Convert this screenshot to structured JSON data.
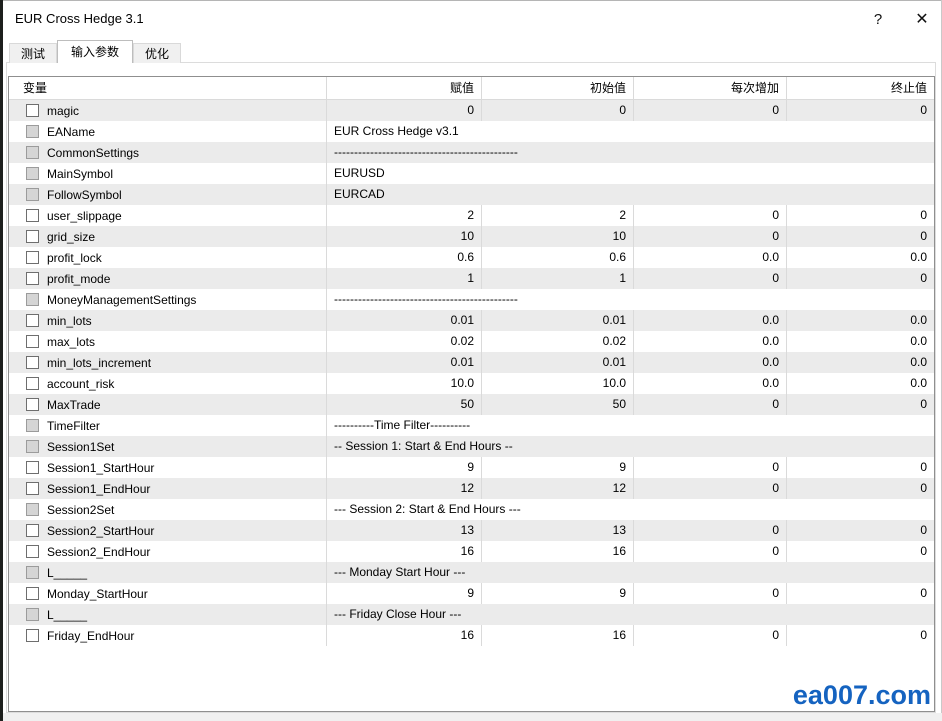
{
  "window": {
    "title": "EUR Cross Hedge 3.1",
    "help_label": "?",
    "close_label": "✕"
  },
  "tabs": [
    {
      "label": "测试",
      "active": false
    },
    {
      "label": "输入参数",
      "active": true
    },
    {
      "label": "优化",
      "active": false
    }
  ],
  "table": {
    "columns": [
      "变量",
      "赋值",
      "初始值",
      "每次增加",
      "终止值"
    ],
    "rows": [
      {
        "name": "magic",
        "type": "num",
        "enabled": true,
        "value": "0",
        "start": "0",
        "step": "0",
        "stop": "0"
      },
      {
        "name": "EAName",
        "type": "str",
        "enabled": false,
        "value": "EUR Cross Hedge v3.1"
      },
      {
        "name": "CommonSettings",
        "type": "str",
        "enabled": false,
        "value": "----------------------------------------------"
      },
      {
        "name": "MainSymbol",
        "type": "str",
        "enabled": false,
        "value": "EURUSD"
      },
      {
        "name": "FollowSymbol",
        "type": "str",
        "enabled": false,
        "value": "EURCAD"
      },
      {
        "name": "user_slippage",
        "type": "num",
        "enabled": true,
        "value": "2",
        "start": "2",
        "step": "0",
        "stop": "0"
      },
      {
        "name": "grid_size",
        "type": "num",
        "enabled": true,
        "value": "10",
        "start": "10",
        "step": "0",
        "stop": "0"
      },
      {
        "name": "profit_lock",
        "type": "num",
        "enabled": true,
        "value": "0.6",
        "start": "0.6",
        "step": "0.0",
        "stop": "0.0"
      },
      {
        "name": "profit_mode",
        "type": "num",
        "enabled": true,
        "value": "1",
        "start": "1",
        "step": "0",
        "stop": "0"
      },
      {
        "name": "MoneyManagementSettings",
        "type": "str",
        "enabled": false,
        "value": "----------------------------------------------"
      },
      {
        "name": "min_lots",
        "type": "num",
        "enabled": true,
        "value": "0.01",
        "start": "0.01",
        "step": "0.0",
        "stop": "0.0"
      },
      {
        "name": "max_lots",
        "type": "num",
        "enabled": true,
        "value": "0.02",
        "start": "0.02",
        "step": "0.0",
        "stop": "0.0"
      },
      {
        "name": "min_lots_increment",
        "type": "num",
        "enabled": true,
        "value": "0.01",
        "start": "0.01",
        "step": "0.0",
        "stop": "0.0"
      },
      {
        "name": "account_risk",
        "type": "num",
        "enabled": true,
        "value": "10.0",
        "start": "10.0",
        "step": "0.0",
        "stop": "0.0"
      },
      {
        "name": "MaxTrade",
        "type": "num",
        "enabled": true,
        "value": "50",
        "start": "50",
        "step": "0",
        "stop": "0"
      },
      {
        "name": "TimeFilter",
        "type": "str",
        "enabled": false,
        "value": "----------Time Filter----------"
      },
      {
        "name": "Session1Set",
        "type": "str",
        "enabled": false,
        "value": "-- Session 1: Start & End Hours --"
      },
      {
        "name": "Session1_StartHour",
        "type": "num",
        "enabled": true,
        "value": "9",
        "start": "9",
        "step": "0",
        "stop": "0"
      },
      {
        "name": "Session1_EndHour",
        "type": "num",
        "enabled": true,
        "value": "12",
        "start": "12",
        "step": "0",
        "stop": "0"
      },
      {
        "name": "Session2Set",
        "type": "str",
        "enabled": false,
        "value": "--- Session 2: Start & End Hours ---"
      },
      {
        "name": "Session2_StartHour",
        "type": "num",
        "enabled": true,
        "value": "13",
        "start": "13",
        "step": "0",
        "stop": "0"
      },
      {
        "name": "Session2_EndHour",
        "type": "num",
        "enabled": true,
        "value": "16",
        "start": "16",
        "step": "0",
        "stop": "0"
      },
      {
        "name": "L_____",
        "type": "str",
        "enabled": false,
        "value": "--- Monday Start Hour ---"
      },
      {
        "name": "Monday_StartHour",
        "type": "num",
        "enabled": true,
        "value": "9",
        "start": "9",
        "step": "0",
        "stop": "0"
      },
      {
        "name": "L_____",
        "type": "str",
        "enabled": false,
        "value": "--- Friday Close Hour ---"
      },
      {
        "name": "Friday_EndHour",
        "type": "num",
        "enabled": true,
        "value": "16",
        "start": "16",
        "step": "0",
        "stop": "0"
      }
    ]
  },
  "watermark": {
    "text": "ea007.com",
    "color": "#1563c0"
  }
}
